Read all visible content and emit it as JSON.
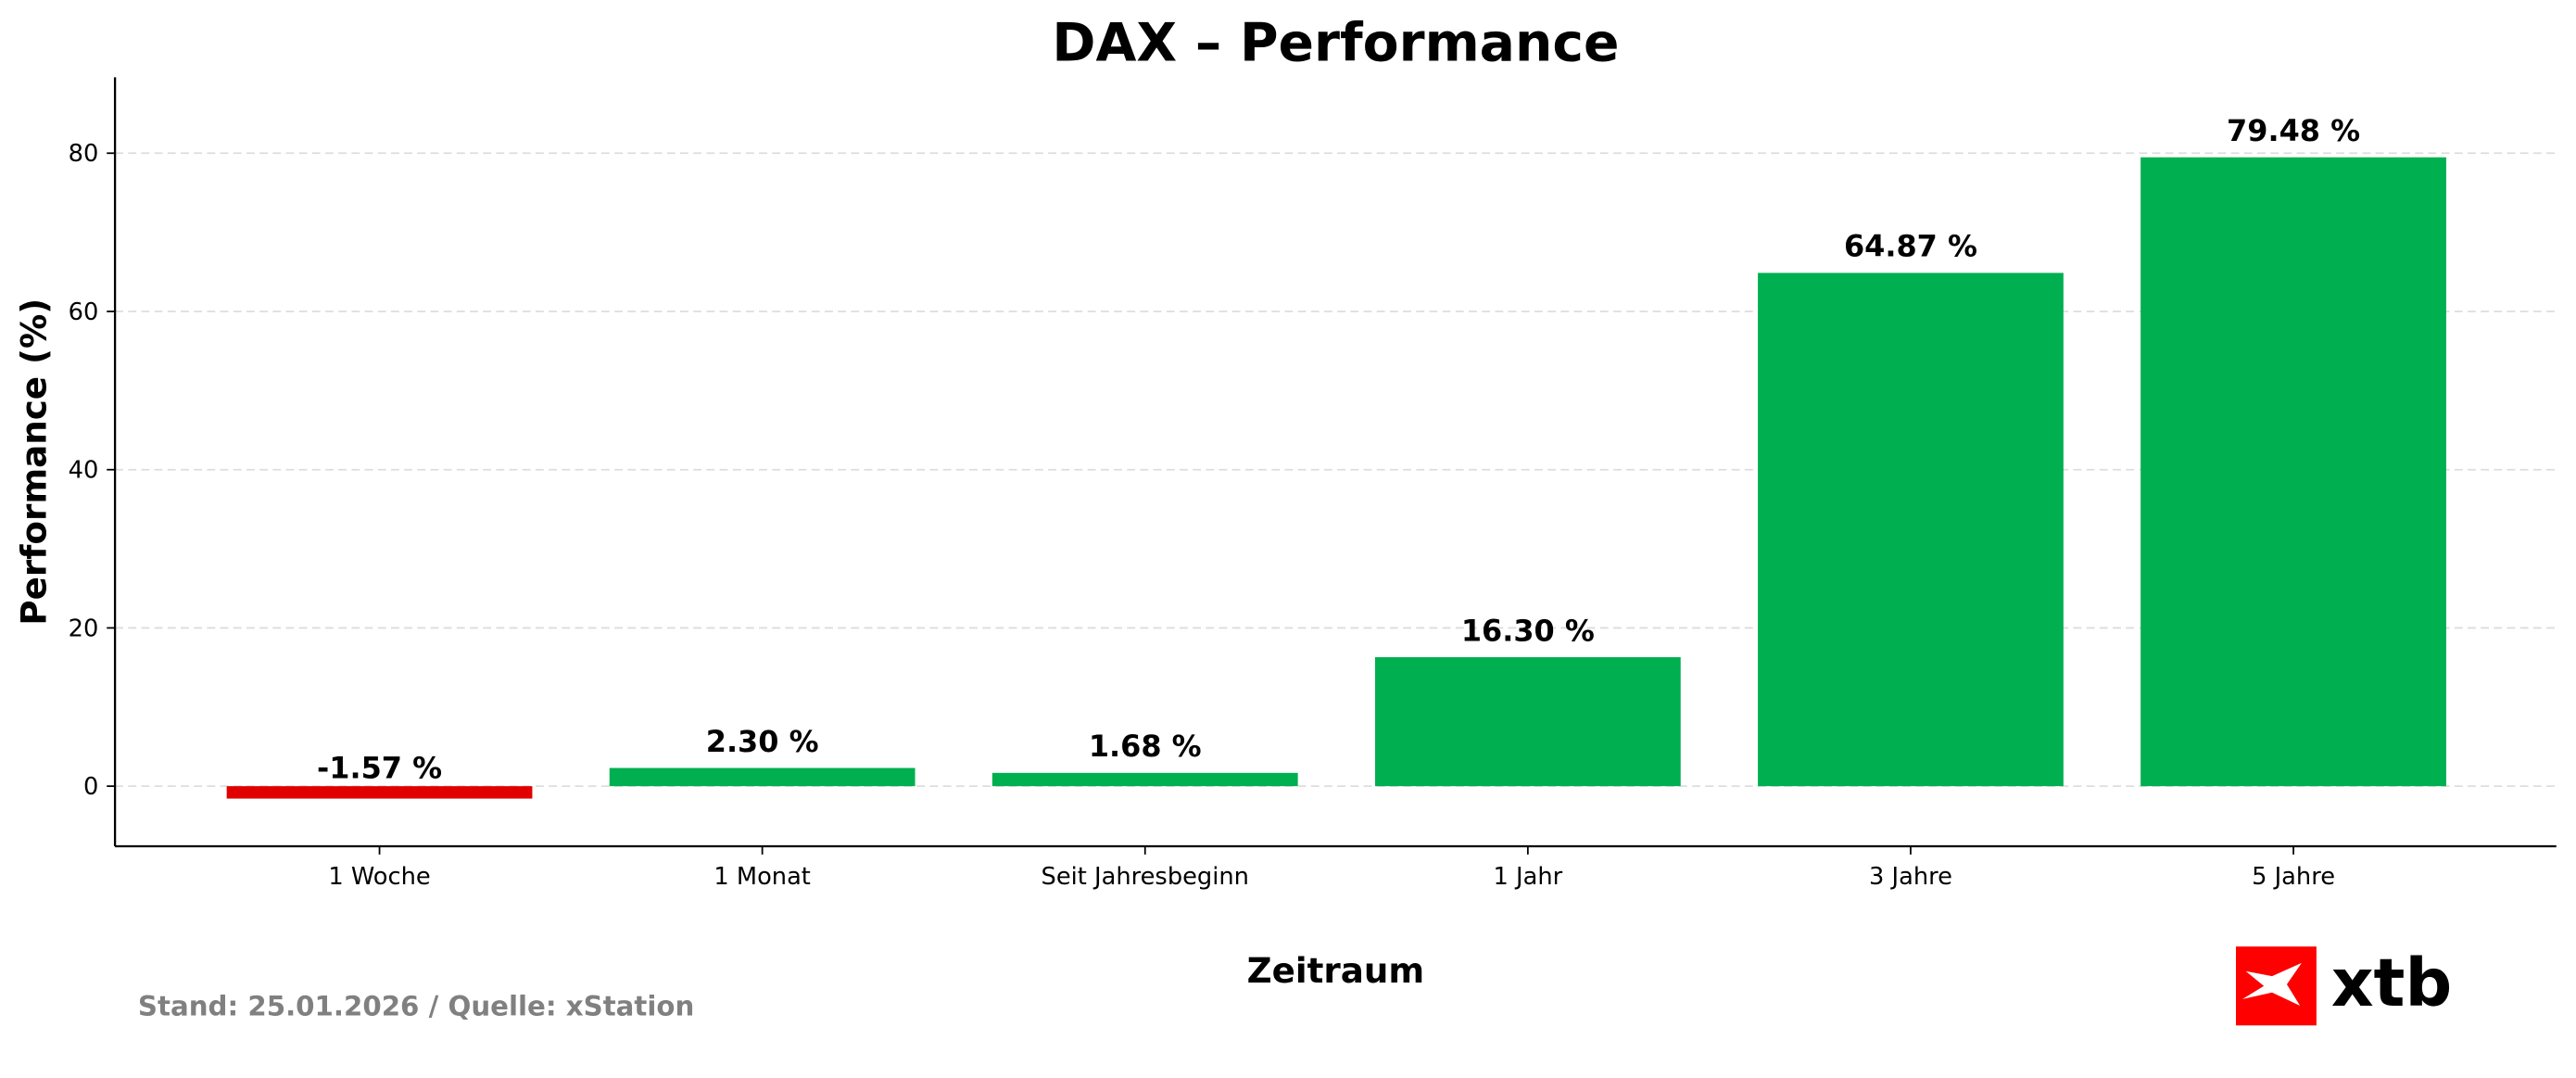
{
  "chart_data": {
    "type": "bar",
    "title": "DAX – Performance",
    "xlabel": "Zeitraum",
    "ylabel": "Performance (%)",
    "categories": [
      "1 Woche",
      "1 Monat",
      "Seit Jahresbeginn",
      "1 Jahr",
      "3 Jahre",
      "5 Jahre"
    ],
    "values": [
      -1.57,
      2.3,
      1.68,
      16.3,
      64.87,
      79.48
    ],
    "data_labels": [
      "-1.57 %",
      "2.30 %",
      "1.68 %",
      "16.30 %",
      "64.87 %",
      "79.48 %"
    ],
    "ylim": [
      -7.6,
      89.6
    ],
    "yticks": [
      0,
      20,
      40,
      60,
      80
    ],
    "grid": "y-dashed",
    "colors": {
      "positive": "#00AF50",
      "negative": "#E00000"
    }
  },
  "footer": {
    "source": "Stand: 25.01.2026 / Quelle: xStation",
    "source_color": "#808080"
  },
  "logo": {
    "text": "xtb",
    "color": "#FF0000"
  }
}
